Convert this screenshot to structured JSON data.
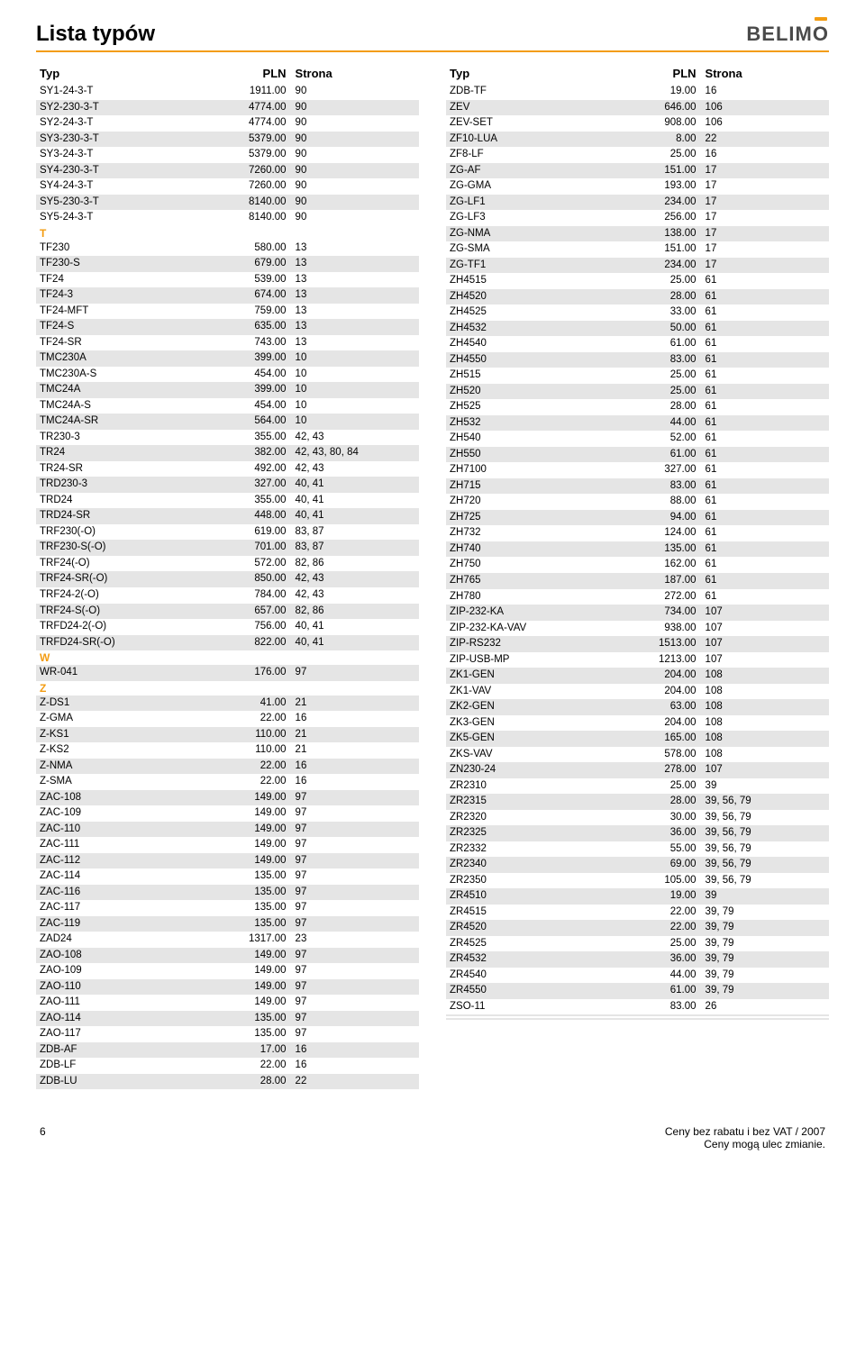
{
  "page_title": "Lista typów",
  "logo_text": "BELIMO",
  "header": {
    "c1": "Typ",
    "c2": "PLN",
    "c3": "Strona"
  },
  "left": [
    {
      "t": "row",
      "s": false,
      "c1": "SY1-24-3-T",
      "c2": "1911.00",
      "c3": "90"
    },
    {
      "t": "row",
      "s": true,
      "c1": "SY2-230-3-T",
      "c2": "4774.00",
      "c3": "90"
    },
    {
      "t": "row",
      "s": false,
      "c1": "SY2-24-3-T",
      "c2": "4774.00",
      "c3": "90"
    },
    {
      "t": "row",
      "s": true,
      "c1": "SY3-230-3-T",
      "c2": "5379.00",
      "c3": "90"
    },
    {
      "t": "row",
      "s": false,
      "c1": "SY3-24-3-T",
      "c2": "5379.00",
      "c3": "90"
    },
    {
      "t": "row",
      "s": true,
      "c1": "SY4-230-3-T",
      "c2": "7260.00",
      "c3": "90"
    },
    {
      "t": "row",
      "s": false,
      "c1": "SY4-24-3-T",
      "c2": "7260.00",
      "c3": "90"
    },
    {
      "t": "row",
      "s": true,
      "c1": "SY5-230-3-T",
      "c2": "8140.00",
      "c3": "90"
    },
    {
      "t": "row",
      "s": false,
      "c1": "SY5-24-3-T",
      "c2": "8140.00",
      "c3": "90"
    },
    {
      "t": "sec",
      "label": "T"
    },
    {
      "t": "row",
      "s": false,
      "c1": "TF230",
      "c2": "580.00",
      "c3": "13"
    },
    {
      "t": "row",
      "s": true,
      "c1": "TF230-S",
      "c2": "679.00",
      "c3": "13"
    },
    {
      "t": "row",
      "s": false,
      "c1": "TF24",
      "c2": "539.00",
      "c3": "13"
    },
    {
      "t": "row",
      "s": true,
      "c1": "TF24-3",
      "c2": "674.00",
      "c3": "13"
    },
    {
      "t": "row",
      "s": false,
      "c1": "TF24-MFT",
      "c2": "759.00",
      "c3": "13"
    },
    {
      "t": "row",
      "s": true,
      "c1": "TF24-S",
      "c2": "635.00",
      "c3": "13"
    },
    {
      "t": "row",
      "s": false,
      "c1": "TF24-SR",
      "c2": "743.00",
      "c3": "13"
    },
    {
      "t": "row",
      "s": true,
      "c1": "TMC230A",
      "c2": "399.00",
      "c3": "10"
    },
    {
      "t": "row",
      "s": false,
      "c1": "TMC230A-S",
      "c2": "454.00",
      "c3": "10"
    },
    {
      "t": "row",
      "s": true,
      "c1": "TMC24A",
      "c2": "399.00",
      "c3": "10"
    },
    {
      "t": "row",
      "s": false,
      "c1": "TMC24A-S",
      "c2": "454.00",
      "c3": "10"
    },
    {
      "t": "row",
      "s": true,
      "c1": "TMC24A-SR",
      "c2": "564.00",
      "c3": "10"
    },
    {
      "t": "row",
      "s": false,
      "c1": "TR230-3",
      "c2": "355.00",
      "c3": "42, 43"
    },
    {
      "t": "row",
      "s": true,
      "c1": "TR24",
      "c2": "382.00",
      "c3": "42, 43, 80, 84"
    },
    {
      "t": "row",
      "s": false,
      "c1": "TR24-SR",
      "c2": "492.00",
      "c3": "42, 43"
    },
    {
      "t": "row",
      "s": true,
      "c1": "TRD230-3",
      "c2": "327.00",
      "c3": "40, 41"
    },
    {
      "t": "row",
      "s": false,
      "c1": "TRD24",
      "c2": "355.00",
      "c3": "40, 41"
    },
    {
      "t": "row",
      "s": true,
      "c1": "TRD24-SR",
      "c2": "448.00",
      "c3": "40, 41"
    },
    {
      "t": "row",
      "s": false,
      "c1": "TRF230(-O)",
      "c2": "619.00",
      "c3": "83, 87"
    },
    {
      "t": "row",
      "s": true,
      "c1": "TRF230-S(-O)",
      "c2": "701.00",
      "c3": "83, 87"
    },
    {
      "t": "row",
      "s": false,
      "c1": "TRF24(-O)",
      "c2": "572.00",
      "c3": "82, 86"
    },
    {
      "t": "row",
      "s": true,
      "c1": "TRF24-SR(-O)",
      "c2": "850.00",
      "c3": "42, 43"
    },
    {
      "t": "row",
      "s": false,
      "c1": "TRF24-2(-O)",
      "c2": "784.00",
      "c3": "42, 43"
    },
    {
      "t": "row",
      "s": true,
      "c1": "TRF24-S(-O)",
      "c2": "657.00",
      "c3": "82, 86"
    },
    {
      "t": "row",
      "s": false,
      "c1": "TRFD24-2(-O)",
      "c2": "756.00",
      "c3": "40, 41"
    },
    {
      "t": "row",
      "s": true,
      "c1": "TRFD24-SR(-O)",
      "c2": "822.00",
      "c3": "40, 41"
    },
    {
      "t": "sec",
      "label": "W"
    },
    {
      "t": "row",
      "s": true,
      "c1": "WR-041",
      "c2": "176.00",
      "c3": "97"
    },
    {
      "t": "sec",
      "label": "Z"
    },
    {
      "t": "row",
      "s": true,
      "c1": "Z-DS1",
      "c2": "41.00",
      "c3": "21"
    },
    {
      "t": "row",
      "s": false,
      "c1": "Z-GMA",
      "c2": "22.00",
      "c3": "16"
    },
    {
      "t": "row",
      "s": true,
      "c1": "Z-KS1",
      "c2": "110.00",
      "c3": "21"
    },
    {
      "t": "row",
      "s": false,
      "c1": "Z-KS2",
      "c2": "110.00",
      "c3": "21"
    },
    {
      "t": "row",
      "s": true,
      "c1": "Z-NMA",
      "c2": "22.00",
      "c3": "16"
    },
    {
      "t": "row",
      "s": false,
      "c1": "Z-SMA",
      "c2": "22.00",
      "c3": "16"
    },
    {
      "t": "row",
      "s": true,
      "c1": "ZAC-108",
      "c2": "149.00",
      "c3": "97"
    },
    {
      "t": "row",
      "s": false,
      "c1": "ZAC-109",
      "c2": "149.00",
      "c3": "97"
    },
    {
      "t": "row",
      "s": true,
      "c1": "ZAC-110",
      "c2": "149.00",
      "c3": "97"
    },
    {
      "t": "row",
      "s": false,
      "c1": "ZAC-111",
      "c2": "149.00",
      "c3": "97"
    },
    {
      "t": "row",
      "s": true,
      "c1": "ZAC-112",
      "c2": "149.00",
      "c3": "97"
    },
    {
      "t": "row",
      "s": false,
      "c1": "ZAC-114",
      "c2": "135.00",
      "c3": "97"
    },
    {
      "t": "row",
      "s": true,
      "c1": "ZAC-116",
      "c2": "135.00",
      "c3": "97"
    },
    {
      "t": "row",
      "s": false,
      "c1": "ZAC-117",
      "c2": "135.00",
      "c3": "97"
    },
    {
      "t": "row",
      "s": true,
      "c1": "ZAC-119",
      "c2": "135.00",
      "c3": "97"
    },
    {
      "t": "row",
      "s": false,
      "c1": "ZAD24",
      "c2": "1317.00",
      "c3": "23"
    },
    {
      "t": "row",
      "s": true,
      "c1": "ZAO-108",
      "c2": "149.00",
      "c3": "97"
    },
    {
      "t": "row",
      "s": false,
      "c1": "ZAO-109",
      "c2": "149.00",
      "c3": "97"
    },
    {
      "t": "row",
      "s": true,
      "c1": "ZAO-110",
      "c2": "149.00",
      "c3": "97"
    },
    {
      "t": "row",
      "s": false,
      "c1": "ZAO-111",
      "c2": "149.00",
      "c3": "97"
    },
    {
      "t": "row",
      "s": true,
      "c1": "ZAO-114",
      "c2": "135.00",
      "c3": "97"
    },
    {
      "t": "row",
      "s": false,
      "c1": "ZAO-117",
      "c2": "135.00",
      "c3": "97"
    },
    {
      "t": "row",
      "s": true,
      "c1": "ZDB-AF",
      "c2": "17.00",
      "c3": "16"
    },
    {
      "t": "row",
      "s": false,
      "c1": "ZDB-LF",
      "c2": "22.00",
      "c3": "16"
    },
    {
      "t": "row",
      "s": true,
      "c1": "ZDB-LU",
      "c2": "28.00",
      "c3": "22"
    }
  ],
  "right": [
    {
      "t": "row",
      "s": false,
      "c1": "ZDB-TF",
      "c2": "19.00",
      "c3": "16"
    },
    {
      "t": "row",
      "s": true,
      "c1": "ZEV",
      "c2": "646.00",
      "c3": "106"
    },
    {
      "t": "row",
      "s": false,
      "c1": "ZEV-SET",
      "c2": "908.00",
      "c3": "106"
    },
    {
      "t": "row",
      "s": true,
      "c1": "ZF10-LUA",
      "c2": "8.00",
      "c3": "22"
    },
    {
      "t": "row",
      "s": false,
      "c1": "ZF8-LF",
      "c2": "25.00",
      "c3": "16"
    },
    {
      "t": "row",
      "s": true,
      "c1": "ZG-AF",
      "c2": "151.00",
      "c3": "17"
    },
    {
      "t": "row",
      "s": false,
      "c1": "ZG-GMA",
      "c2": "193.00",
      "c3": "17"
    },
    {
      "t": "row",
      "s": true,
      "c1": "ZG-LF1",
      "c2": "234.00",
      "c3": "17"
    },
    {
      "t": "row",
      "s": false,
      "c1": "ZG-LF3",
      "c2": "256.00",
      "c3": "17"
    },
    {
      "t": "row",
      "s": true,
      "c1": "ZG-NMA",
      "c2": "138.00",
      "c3": "17"
    },
    {
      "t": "row",
      "s": false,
      "c1": "ZG-SMA",
      "c2": "151.00",
      "c3": "17"
    },
    {
      "t": "row",
      "s": true,
      "c1": "ZG-TF1",
      "c2": "234.00",
      "c3": "17"
    },
    {
      "t": "row",
      "s": false,
      "c1": "ZH4515",
      "c2": "25.00",
      "c3": "61"
    },
    {
      "t": "row",
      "s": true,
      "c1": "ZH4520",
      "c2": "28.00",
      "c3": "61"
    },
    {
      "t": "row",
      "s": false,
      "c1": "ZH4525",
      "c2": "33.00",
      "c3": "61"
    },
    {
      "t": "row",
      "s": true,
      "c1": "ZH4532",
      "c2": "50.00",
      "c3": "61"
    },
    {
      "t": "row",
      "s": false,
      "c1": "ZH4540",
      "c2": "61.00",
      "c3": "61"
    },
    {
      "t": "row",
      "s": true,
      "c1": "ZH4550",
      "c2": "83.00",
      "c3": "61"
    },
    {
      "t": "row",
      "s": false,
      "c1": "ZH515",
      "c2": "25.00",
      "c3": "61"
    },
    {
      "t": "row",
      "s": true,
      "c1": "ZH520",
      "c2": "25.00",
      "c3": "61"
    },
    {
      "t": "row",
      "s": false,
      "c1": "ZH525",
      "c2": "28.00",
      "c3": "61"
    },
    {
      "t": "row",
      "s": true,
      "c1": "ZH532",
      "c2": "44.00",
      "c3": "61"
    },
    {
      "t": "row",
      "s": false,
      "c1": "ZH540",
      "c2": "52.00",
      "c3": "61"
    },
    {
      "t": "row",
      "s": true,
      "c1": "ZH550",
      "c2": "61.00",
      "c3": "61"
    },
    {
      "t": "row",
      "s": false,
      "c1": "ZH7100",
      "c2": "327.00",
      "c3": "61"
    },
    {
      "t": "row",
      "s": true,
      "c1": "ZH715",
      "c2": "83.00",
      "c3": "61"
    },
    {
      "t": "row",
      "s": false,
      "c1": "ZH720",
      "c2": "88.00",
      "c3": "61"
    },
    {
      "t": "row",
      "s": true,
      "c1": "ZH725",
      "c2": "94.00",
      "c3": "61"
    },
    {
      "t": "row",
      "s": false,
      "c1": "ZH732",
      "c2": "124.00",
      "c3": "61"
    },
    {
      "t": "row",
      "s": true,
      "c1": "ZH740",
      "c2": "135.00",
      "c3": "61"
    },
    {
      "t": "row",
      "s": false,
      "c1": "ZH750",
      "c2": "162.00",
      "c3": "61"
    },
    {
      "t": "row",
      "s": true,
      "c1": "ZH765",
      "c2": "187.00",
      "c3": "61"
    },
    {
      "t": "row",
      "s": false,
      "c1": "ZH780",
      "c2": "272.00",
      "c3": "61"
    },
    {
      "t": "row",
      "s": true,
      "c1": "ZIP-232-KA",
      "c2": "734.00",
      "c3": "107"
    },
    {
      "t": "row",
      "s": false,
      "c1": "ZIP-232-KA-VAV",
      "c2": "938.00",
      "c3": "107"
    },
    {
      "t": "row",
      "s": true,
      "c1": "ZIP-RS232",
      "c2": "1513.00",
      "c3": "107"
    },
    {
      "t": "row",
      "s": false,
      "c1": "ZIP-USB-MP",
      "c2": "1213.00",
      "c3": "107"
    },
    {
      "t": "row",
      "s": true,
      "c1": "ZK1-GEN",
      "c2": "204.00",
      "c3": "108"
    },
    {
      "t": "row",
      "s": false,
      "c1": "ZK1-VAV",
      "c2": "204.00",
      "c3": "108"
    },
    {
      "t": "row",
      "s": true,
      "c1": "ZK2-GEN",
      "c2": "63.00",
      "c3": "108"
    },
    {
      "t": "row",
      "s": false,
      "c1": "ZK3-GEN",
      "c2": "204.00",
      "c3": "108"
    },
    {
      "t": "row",
      "s": true,
      "c1": "ZK5-GEN",
      "c2": "165.00",
      "c3": "108"
    },
    {
      "t": "row",
      "s": false,
      "c1": "ZKS-VAV",
      "c2": "578.00",
      "c3": "108"
    },
    {
      "t": "row",
      "s": true,
      "c1": "ZN230-24",
      "c2": "278.00",
      "c3": "107"
    },
    {
      "t": "row",
      "s": false,
      "c1": "ZR2310",
      "c2": "25.00",
      "c3": "39"
    },
    {
      "t": "row",
      "s": true,
      "c1": "ZR2315",
      "c2": "28.00",
      "c3": "39, 56, 79"
    },
    {
      "t": "row",
      "s": false,
      "c1": "ZR2320",
      "c2": "30.00",
      "c3": "39, 56, 79"
    },
    {
      "t": "row",
      "s": true,
      "c1": "ZR2325",
      "c2": "36.00",
      "c3": "39, 56, 79"
    },
    {
      "t": "row",
      "s": false,
      "c1": "ZR2332",
      "c2": "55.00",
      "c3": "39, 56, 79"
    },
    {
      "t": "row",
      "s": true,
      "c1": "ZR2340",
      "c2": "69.00",
      "c3": "39, 56, 79"
    },
    {
      "t": "row",
      "s": false,
      "c1": "ZR2350",
      "c2": "105.00",
      "c3": "39, 56, 79"
    },
    {
      "t": "row",
      "s": true,
      "c1": "ZR4510",
      "c2": "19.00",
      "c3": "39"
    },
    {
      "t": "row",
      "s": false,
      "c1": "ZR4515",
      "c2": "22.00",
      "c3": "39, 79"
    },
    {
      "t": "row",
      "s": true,
      "c1": "ZR4520",
      "c2": "22.00",
      "c3": "39, 79"
    },
    {
      "t": "row",
      "s": false,
      "c1": "ZR4525",
      "c2": "25.00",
      "c3": "39, 79"
    },
    {
      "t": "row",
      "s": true,
      "c1": "ZR4532",
      "c2": "36.00",
      "c3": "39, 79"
    },
    {
      "t": "row",
      "s": false,
      "c1": "ZR4540",
      "c2": "44.00",
      "c3": "39, 79"
    },
    {
      "t": "row",
      "s": true,
      "c1": "ZR4550",
      "c2": "61.00",
      "c3": "39, 79"
    },
    {
      "t": "row",
      "s": false,
      "c1": "ZSO-11",
      "c2": "83.00",
      "c3": "26"
    },
    {
      "t": "row",
      "s": true,
      "c1": "",
      "c2": "",
      "c3": ""
    },
    {
      "t": "row",
      "s": false,
      "c1": "",
      "c2": "",
      "c3": ""
    },
    {
      "t": "row",
      "s": true,
      "c1": "",
      "c2": "",
      "c3": ""
    }
  ],
  "footer": {
    "page_num": "6",
    "line1": "Ceny bez rabatu i bez VAT / 2007",
    "line2": "Ceny mogą ulec zmianie."
  },
  "colors": {
    "accent": "#f39c12",
    "stripe": "#e5e5e5",
    "text": "#000000",
    "logo_gray": "#4a4a4a"
  }
}
